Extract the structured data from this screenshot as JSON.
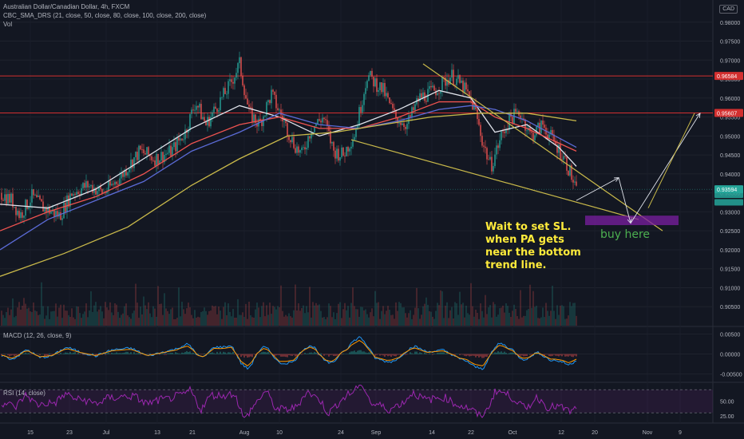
{
  "header": {
    "symbol_line": "Australian Dollar/Canadian Dollar, 4h, FXCM",
    "indicator_line": "CBC_SMA_DRS (21, close, 50, close, 80, close, 100, close, 200, close)",
    "vol_label": "Vol",
    "currency": "CAD"
  },
  "panes": {
    "macd_label": "MACD (12, 26, close, 9)",
    "rsi_label": "RSI (14, close)"
  },
  "annotations": {
    "note_lines": [
      "Wait to set SL.",
      "when PA gets",
      "near the bottom",
      "trend line."
    ],
    "buy_label": "buy here"
  },
  "colors": {
    "background": "#131722",
    "up": "#26a69a",
    "down": "#ef5350",
    "sma21": "#e0e3eb",
    "sma50": "#ef5350",
    "sma80": "#5b6bd6",
    "sma200": "#c9b94a",
    "trendline": "#c9b94a",
    "resistance": "#d32f2f",
    "rsi": "#9c27b0",
    "buy_zone": "#7b1fa2"
  },
  "chart_data": {
    "type": "candlestick",
    "title": "Australian Dollar/Canadian Dollar, 4h, FXCM",
    "x_tick_labels": [
      "15",
      "23",
      "Jul",
      "13",
      "21",
      "Aug",
      "10",
      "24",
      "Sep",
      "14",
      "22",
      "Oct",
      "12",
      "20",
      "Nov",
      "9"
    ],
    "price_axis": {
      "ylim": [
        0.9,
        0.985
      ],
      "ticks": [
        "0.98000",
        "0.97500",
        "0.97000",
        "0.96500",
        "0.96000",
        "0.95500",
        "0.95000",
        "0.94500",
        "0.94000",
        "0.93500",
        "0.93000",
        "0.92500",
        "0.92000",
        "0.91500",
        "0.91000",
        "0.90500"
      ]
    },
    "price_labels": [
      {
        "value": 0.96584,
        "text": "0.96584",
        "color": "#d32f2f"
      },
      {
        "value": 0.95607,
        "text": "0.95607",
        "color": "#d32f2f"
      },
      {
        "value": 0.93594,
        "text": "0.93594",
        "color": "#26a69a"
      }
    ],
    "horizontal_levels": [
      0.96584,
      0.95607
    ],
    "price_path": [
      [
        0,
        0.935
      ],
      [
        15,
        0.933
      ],
      [
        25,
        0.929
      ],
      [
        40,
        0.934
      ],
      [
        55,
        0.931
      ],
      [
        75,
        0.929
      ],
      [
        90,
        0.935
      ],
      [
        110,
        0.937
      ],
      [
        130,
        0.935
      ],
      [
        150,
        0.939
      ],
      [
        175,
        0.946
      ],
      [
        195,
        0.944
      ],
      [
        215,
        0.946
      ],
      [
        232,
        0.951
      ],
      [
        245,
        0.959
      ],
      [
        258,
        0.953
      ],
      [
        272,
        0.958
      ],
      [
        287,
        0.963
      ],
      [
        300,
        0.969
      ],
      [
        312,
        0.956
      ],
      [
        325,
        0.953
      ],
      [
        340,
        0.961
      ],
      [
        355,
        0.954
      ],
      [
        368,
        0.948
      ],
      [
        378,
        0.945
      ],
      [
        390,
        0.952
      ],
      [
        405,
        0.955
      ],
      [
        418,
        0.946
      ],
      [
        430,
        0.945
      ],
      [
        445,
        0.951
      ],
      [
        460,
        0.966
      ],
      [
        480,
        0.962
      ],
      [
        495,
        0.955
      ],
      [
        510,
        0.953
      ],
      [
        525,
        0.96
      ],
      [
        545,
        0.962
      ],
      [
        565,
        0.966
      ],
      [
        580,
        0.963
      ],
      [
        595,
        0.957
      ],
      [
        605,
        0.948
      ],
      [
        615,
        0.942
      ],
      [
        628,
        0.95
      ],
      [
        640,
        0.955
      ],
      [
        652,
        0.956
      ],
      [
        665,
        0.95
      ],
      [
        680,
        0.953
      ],
      [
        695,
        0.948
      ],
      [
        705,
        0.945
      ],
      [
        715,
        0.94
      ],
      [
        722,
        0.935
      ]
    ],
    "sma_series": [
      {
        "key": "sma21",
        "path": [
          [
            0,
            0.932
          ],
          [
            60,
            0.931
          ],
          [
            120,
            0.936
          ],
          [
            180,
            0.944
          ],
          [
            240,
            0.952
          ],
          [
            300,
            0.958
          ],
          [
            350,
            0.955
          ],
          [
            400,
            0.95
          ],
          [
            450,
            0.953
          ],
          [
            500,
            0.957
          ],
          [
            550,
            0.962
          ],
          [
            590,
            0.96
          ],
          [
            620,
            0.951
          ],
          [
            660,
            0.953
          ],
          [
            700,
            0.947
          ],
          [
            722,
            0.942
          ]
        ]
      },
      {
        "key": "sma50",
        "path": [
          [
            0,
            0.925
          ],
          [
            60,
            0.93
          ],
          [
            120,
            0.934
          ],
          [
            180,
            0.94
          ],
          [
            240,
            0.948
          ],
          [
            300,
            0.953
          ],
          [
            350,
            0.955
          ],
          [
            400,
            0.952
          ],
          [
            450,
            0.952
          ],
          [
            500,
            0.955
          ],
          [
            550,
            0.959
          ],
          [
            590,
            0.959
          ],
          [
            620,
            0.955
          ],
          [
            660,
            0.952
          ],
          [
            722,
            0.946
          ]
        ]
      },
      {
        "key": "sma80",
        "path": [
          [
            0,
            0.92
          ],
          [
            60,
            0.928
          ],
          [
            120,
            0.933
          ],
          [
            180,
            0.938
          ],
          [
            240,
            0.946
          ],
          [
            300,
            0.951
          ],
          [
            350,
            0.956
          ],
          [
            400,
            0.953
          ],
          [
            450,
            0.952
          ],
          [
            500,
            0.954
          ],
          [
            550,
            0.957
          ],
          [
            590,
            0.958
          ],
          [
            620,
            0.957
          ],
          [
            660,
            0.954
          ],
          [
            722,
            0.947
          ]
        ]
      },
      {
        "key": "sma200",
        "path": [
          [
            0,
            0.913
          ],
          [
            80,
            0.919
          ],
          [
            160,
            0.926
          ],
          [
            240,
            0.937
          ],
          [
            300,
            0.944
          ],
          [
            360,
            0.95
          ],
          [
            420,
            0.951
          ],
          [
            480,
            0.953
          ],
          [
            540,
            0.955
          ],
          [
            600,
            0.956
          ],
          [
            660,
            0.956
          ],
          [
            722,
            0.954
          ]
        ]
      }
    ],
    "trendlines": [
      {
        "from": [
          530,
          0.969
        ],
        "to": [
          830,
          0.925
        ]
      },
      {
        "from": [
          440,
          0.949
        ],
        "to": [
          800,
          0.928
        ]
      }
    ],
    "projection_arrows": [
      {
        "from": [
          722,
          0.933
        ],
        "to": [
          775,
          0.939
        ]
      },
      {
        "from": [
          775,
          0.939
        ],
        "to": [
          790,
          0.927
        ]
      },
      {
        "from": [
          790,
          0.927
        ],
        "to": [
          877,
          0.956
        ]
      }
    ],
    "buy_zone": {
      "x_from": 733,
      "x_to": 850,
      "price_from": 0.9265,
      "price_to": 0.929
    },
    "macd": {
      "ticks": [
        "0.00500",
        "0.00000",
        "-0.00500"
      ],
      "ylim": [
        -0.0065,
        0.0065
      ]
    },
    "rsi": {
      "ticks": [
        "50.00",
        "25.00"
      ],
      "ylim": [
        15,
        80
      ],
      "band": [
        30,
        70
      ]
    }
  }
}
